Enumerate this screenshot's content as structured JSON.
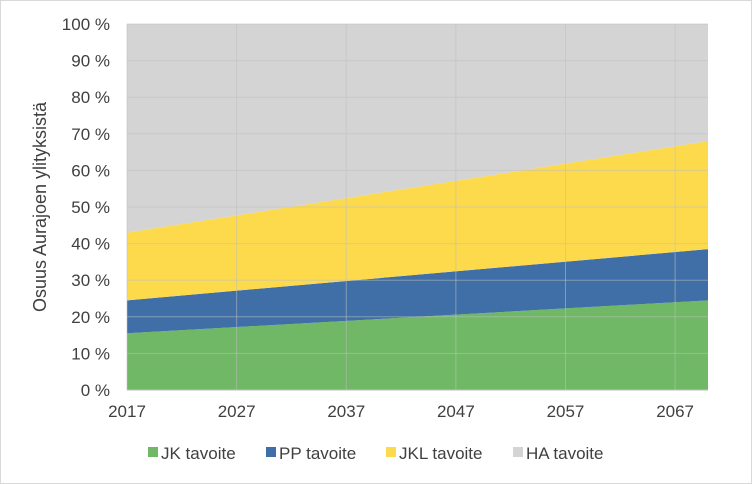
{
  "chart_data": {
    "type": "area",
    "stacked": true,
    "x": [
      2017,
      2027,
      2037,
      2047,
      2057,
      2067
    ],
    "x_ticks": [
      "2017",
      "2027",
      "2037",
      "2047",
      "2057",
      "2067"
    ],
    "x_range": [
      2017,
      2070
    ],
    "y_ticks": [
      "0 %",
      "10 %",
      "20 %",
      "30 %",
      "40 %",
      "50 %",
      "60 %",
      "70 %",
      "80 %",
      "90 %",
      "100 %"
    ],
    "ylim": [
      0,
      100
    ],
    "ylabel": "Osuus Aurajoen ylityksistä",
    "xlabel": "",
    "grid": true,
    "legend_position": "bottom",
    "series": [
      {
        "name": "JK tavoite",
        "color": "#70b865",
        "key": [
          [
            2017,
            15.5
          ],
          [
            2070,
            24.5
          ]
        ]
      },
      {
        "name": "PP tavoite",
        "color": "#3f6fa6",
        "key": [
          [
            2017,
            9
          ],
          [
            2070,
            14
          ]
        ]
      },
      {
        "name": "JKL tavoite",
        "color": "#fdd94c",
        "key": [
          [
            2017,
            18.5
          ],
          [
            2070,
            29.5
          ]
        ]
      },
      {
        "name": "HA tavoite",
        "color": "#d4d4d4",
        "key": [
          [
            2017,
            57
          ],
          [
            2070,
            32
          ]
        ]
      }
    ]
  }
}
